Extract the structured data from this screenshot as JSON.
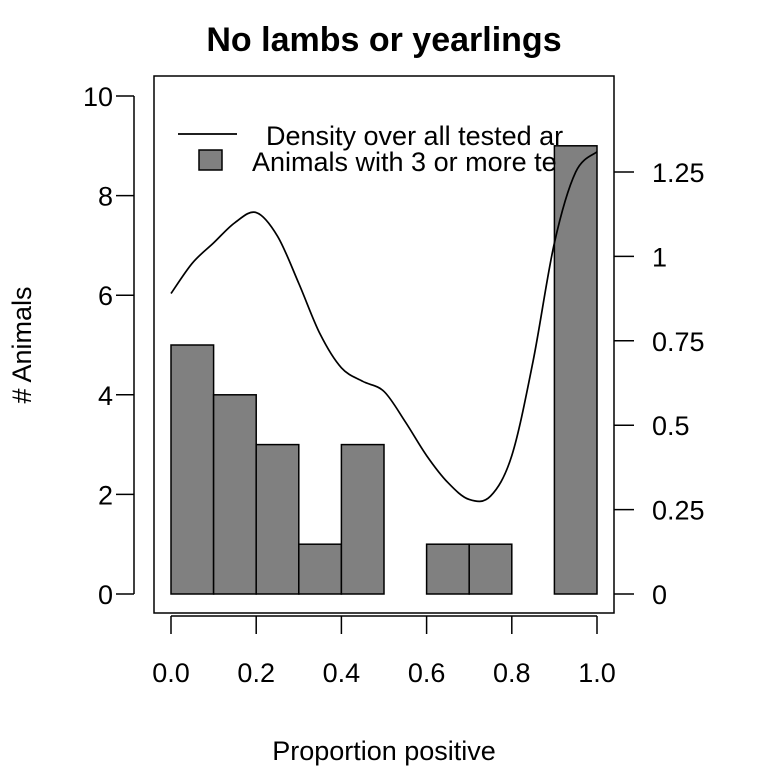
{
  "chart_data": {
    "type": "bar",
    "title": "No lambs or yearlings",
    "xlabel": "Proportion positive",
    "ylabel": "# Animals",
    "xlim": [
      0.0,
      1.0
    ],
    "ylim": [
      0,
      10
    ],
    "x_ticks": [
      "0.0",
      "0.2",
      "0.4",
      "0.6",
      "0.8",
      "1.0"
    ],
    "y_ticks": [
      "0",
      "2",
      "4",
      "6",
      "8",
      "10"
    ],
    "y2_ticks": [
      "0",
      "0.25",
      "0.5",
      "0.75",
      "1",
      "1.25"
    ],
    "y2lim": [
      0,
      1.25
    ],
    "bin_edges": [
      0.0,
      0.1,
      0.2,
      0.3,
      0.4,
      0.5,
      0.6,
      0.7,
      0.8,
      0.9,
      1.0
    ],
    "counts": [
      5,
      4,
      3,
      1,
      3,
      0,
      1,
      1,
      0,
      9
    ],
    "bar_color": "#808080",
    "density": {
      "x": [
        0.0,
        0.05,
        0.1,
        0.15,
        0.2,
        0.25,
        0.3,
        0.35,
        0.4,
        0.45,
        0.5,
        0.55,
        0.6,
        0.65,
        0.7,
        0.75,
        0.8,
        0.85,
        0.9,
        0.95,
        1.0
      ],
      "y": [
        0.89,
        0.98,
        1.04,
        1.1,
        1.13,
        1.06,
        0.92,
        0.77,
        0.67,
        0.63,
        0.6,
        0.51,
        0.41,
        0.33,
        0.28,
        0.29,
        0.41,
        0.69,
        1.04,
        1.25,
        1.31
      ]
    },
    "legend": {
      "placement": "top-right",
      "entries": [
        {
          "label": "Density over all tested ar",
          "kind": "line"
        },
        {
          "label": "Animals with 3 or more te",
          "kind": "box"
        }
      ]
    },
    "grid": false
  }
}
